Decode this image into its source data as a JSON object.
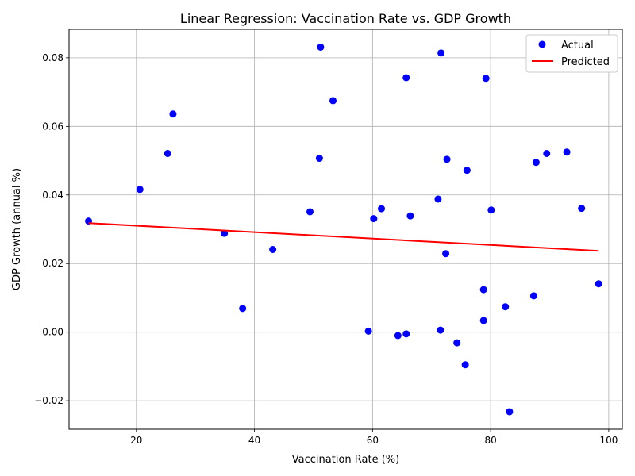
{
  "chart_data": {
    "type": "scatter",
    "title": "Linear Regression: Vaccination Rate vs. GDP Growth",
    "xlabel": "Vaccination Rate (%)",
    "ylabel": "GDP Growth (annual %)",
    "xlim": [
      8.6,
      102.3
    ],
    "ylim": [
      -0.0283,
      0.0883
    ],
    "x_ticks": [
      20,
      40,
      60,
      80,
      100
    ],
    "x_tick_labels": [
      "20",
      "40",
      "60",
      "80",
      "100"
    ],
    "y_ticks": [
      -0.02,
      0.0,
      0.02,
      0.04,
      0.06,
      0.08
    ],
    "y_tick_labels": [
      "−0.02",
      "0.00",
      "0.02",
      "0.04",
      "0.06",
      "0.08"
    ],
    "grid": true,
    "legend_position": "top-right",
    "series": [
      {
        "name": "Actual",
        "kind": "scatter",
        "color": "#0000ff",
        "points": [
          [
            11.9,
            0.0324
          ],
          [
            20.6,
            0.0416
          ],
          [
            25.3,
            0.0521
          ],
          [
            26.2,
            0.0636
          ],
          [
            34.9,
            0.0288
          ],
          [
            38.0,
            0.0069
          ],
          [
            43.1,
            0.0241
          ],
          [
            49.4,
            0.0351
          ],
          [
            51.0,
            0.0507
          ],
          [
            51.2,
            0.0831
          ],
          [
            53.3,
            0.0675
          ],
          [
            59.3,
            0.0003
          ],
          [
            60.2,
            0.0331
          ],
          [
            61.5,
            0.036
          ],
          [
            64.3,
            -0.001
          ],
          [
            65.7,
            0.0742
          ],
          [
            65.7,
            -0.0005
          ],
          [
            66.4,
            0.0339
          ],
          [
            71.1,
            0.0388
          ],
          [
            71.5,
            0.0006
          ],
          [
            71.6,
            0.0814
          ],
          [
            72.4,
            0.0229
          ],
          [
            72.6,
            0.0504
          ],
          [
            74.3,
            -0.0031
          ],
          [
            75.7,
            -0.0095
          ],
          [
            76.0,
            0.0472
          ],
          [
            78.8,
            0.0124
          ],
          [
            78.8,
            0.0034
          ],
          [
            79.2,
            0.074
          ],
          [
            80.1,
            0.0356
          ],
          [
            82.5,
            0.0074
          ],
          [
            83.2,
            -0.0232
          ],
          [
            87.3,
            0.0106
          ],
          [
            87.7,
            0.0495
          ],
          [
            89.5,
            0.0521
          ],
          [
            92.9,
            0.0525
          ],
          [
            95.4,
            0.0361
          ],
          [
            98.3,
            0.0141
          ]
        ]
      },
      {
        "name": "Predicted",
        "kind": "line",
        "color": "#ff0000",
        "points": [
          [
            11.9,
            0.0318
          ],
          [
            98.3,
            0.0237
          ]
        ]
      }
    ]
  }
}
